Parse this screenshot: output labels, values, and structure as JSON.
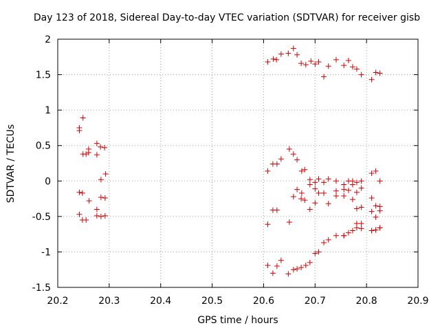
{
  "chart_data": {
    "type": "scatter",
    "title": "Day 123 of 2018, Sidereal Day-to-day VTEC variation (SDTVAR) for receiver gisb",
    "xlabel": "GPS time / hours",
    "ylabel": "SDTVAR / TECUs",
    "xlim": [
      20.2,
      20.9
    ],
    "ylim": [
      -1.5,
      2
    ],
    "xticks": [
      20.2,
      20.3,
      20.4,
      20.5,
      20.6,
      20.7,
      20.8,
      20.9
    ],
    "xtick_labels": [
      "20.2",
      "20.3",
      "20.4",
      "20.5",
      "20.6",
      "20.7",
      "20.8",
      "20.9"
    ],
    "yticks": [
      -1.5,
      -1,
      -0.5,
      0,
      0.5,
      1,
      1.5,
      2
    ],
    "ytick_labels": [
      "-1.5",
      "-1",
      "-0.5",
      "0",
      "0.5",
      "1",
      "1.5",
      "2"
    ],
    "grid": true,
    "marker": "+",
    "marker_color": "#cc0000",
    "series": [
      {
        "name": "SDTVAR",
        "x": [
          20.242,
          20.242,
          20.249,
          20.26,
          20.26,
          20.276,
          20.283,
          20.291,
          20.249,
          20.255,
          20.276,
          20.284,
          20.293,
          20.242,
          20.248,
          20.261,
          20.276,
          20.284,
          20.292,
          20.242,
          20.248,
          20.255,
          20.276,
          20.284,
          20.292,
          20.608,
          20.619,
          20.625,
          20.634,
          20.648,
          20.658,
          20.665,
          20.673,
          20.682,
          20.692,
          20.7,
          20.707,
          20.717,
          20.726,
          20.741,
          20.756,
          20.765,
          20.773,
          20.781,
          20.79,
          20.81,
          20.818,
          20.826,
          20.608,
          20.618,
          20.626,
          20.634,
          20.65,
          20.658,
          20.665,
          20.674,
          20.68,
          20.69,
          20.7,
          20.707,
          20.717,
          20.726,
          20.741,
          20.756,
          20.765,
          20.773,
          20.781,
          20.79,
          20.81,
          20.818,
          20.826,
          20.665,
          20.674,
          20.69,
          20.707,
          20.717,
          20.741,
          20.756,
          20.765,
          20.773,
          20.781,
          20.79,
          20.81,
          20.818,
          20.826,
          20.658,
          20.68,
          20.7,
          20.726,
          20.741,
          20.756,
          20.773,
          20.781,
          20.79,
          20.81,
          20.818,
          20.826,
          20.608,
          20.618,
          20.626,
          20.65,
          20.673,
          20.69,
          20.7,
          20.756,
          20.781,
          20.79,
          20.81,
          20.818,
          20.826,
          20.608,
          20.618,
          20.626,
          20.634,
          20.648,
          20.658,
          20.665,
          20.673,
          20.682,
          20.69,
          20.7,
          20.707,
          20.717,
          20.726,
          20.741,
          20.756,
          20.765,
          20.773,
          20.781,
          20.79,
          20.81,
          20.818,
          20.826
        ],
        "y": [
          0.75,
          0.71,
          0.89,
          0.45,
          0.4,
          0.53,
          0.48,
          0.47,
          0.38,
          0.38,
          0.37,
          0.02,
          0.1,
          -0.16,
          -0.17,
          -0.28,
          -0.4,
          -0.23,
          -0.24,
          -0.47,
          -0.55,
          -0.55,
          -0.49,
          -0.5,
          -0.49,
          1.68,
          1.72,
          1.71,
          1.79,
          1.8,
          1.87,
          1.78,
          1.66,
          1.64,
          1.69,
          1.65,
          1.68,
          1.47,
          1.62,
          1.71,
          1.63,
          1.7,
          1.61,
          1.58,
          1.5,
          1.43,
          1.53,
          1.52,
          0.14,
          0.24,
          0.24,
          0.31,
          0.45,
          0.38,
          0.3,
          0.14,
          0.16,
          0.02,
          -0.02,
          0.03,
          -0.02,
          0.03,
          0.0,
          -0.05,
          0.0,
          0.0,
          -0.02,
          0.0,
          0.11,
          0.14,
          0.0,
          -0.12,
          -0.17,
          -0.05,
          -0.17,
          -0.17,
          -0.14,
          -0.12,
          -0.13,
          -0.05,
          -0.16,
          -0.1,
          -0.24,
          -0.35,
          -0.36,
          -0.22,
          -0.27,
          -0.31,
          -0.32,
          -0.21,
          -0.21,
          -0.26,
          -0.39,
          -0.37,
          -0.43,
          -0.51,
          -0.42,
          -0.61,
          -0.41,
          -0.41,
          -0.58,
          -0.25,
          -0.4,
          -0.11,
          -0.77,
          -0.6,
          -0.67,
          -0.7,
          -0.69,
          -0.66,
          -1.19,
          -1.3,
          -1.2,
          -1.12,
          -1.31,
          -1.25,
          -1.24,
          -1.22,
          -1.19,
          -1.15,
          -1.02,
          -1.0,
          -0.87,
          -0.83,
          -0.77,
          -0.77,
          -0.73,
          -0.7,
          -0.66,
          -0.6,
          -0.7,
          -0.69,
          -0.66
        ]
      }
    ]
  }
}
